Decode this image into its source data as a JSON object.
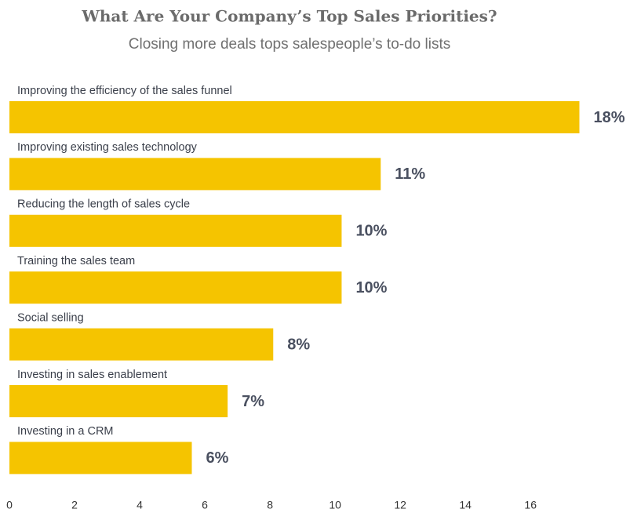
{
  "chart_data": {
    "type": "hbar",
    "title": "What Are Your Company’s Top Sales Priorities?",
    "subtitle": "Closing more deals tops salespeople’s to-do lists",
    "categories": [
      "Improving the efficiency of the sales funnel",
      "Improving existing sales technology",
      "Reducing the length of sales cycle",
      "Training the sales team",
      "Social selling",
      "Investing in sales enablement",
      "Investing in a CRM"
    ],
    "values": [
      17.5,
      11.4,
      10.2,
      10.2,
      8.1,
      6.7,
      5.6
    ],
    "value_labels": [
      "18%",
      "11%",
      "10%",
      "10%",
      "8%",
      "7%",
      "6%"
    ],
    "color": "#f5c400",
    "xlim": [
      0,
      18.5
    ],
    "xticks": [
      0,
      2,
      4,
      6,
      8,
      10,
      12,
      14,
      16
    ],
    "grid": false
  }
}
